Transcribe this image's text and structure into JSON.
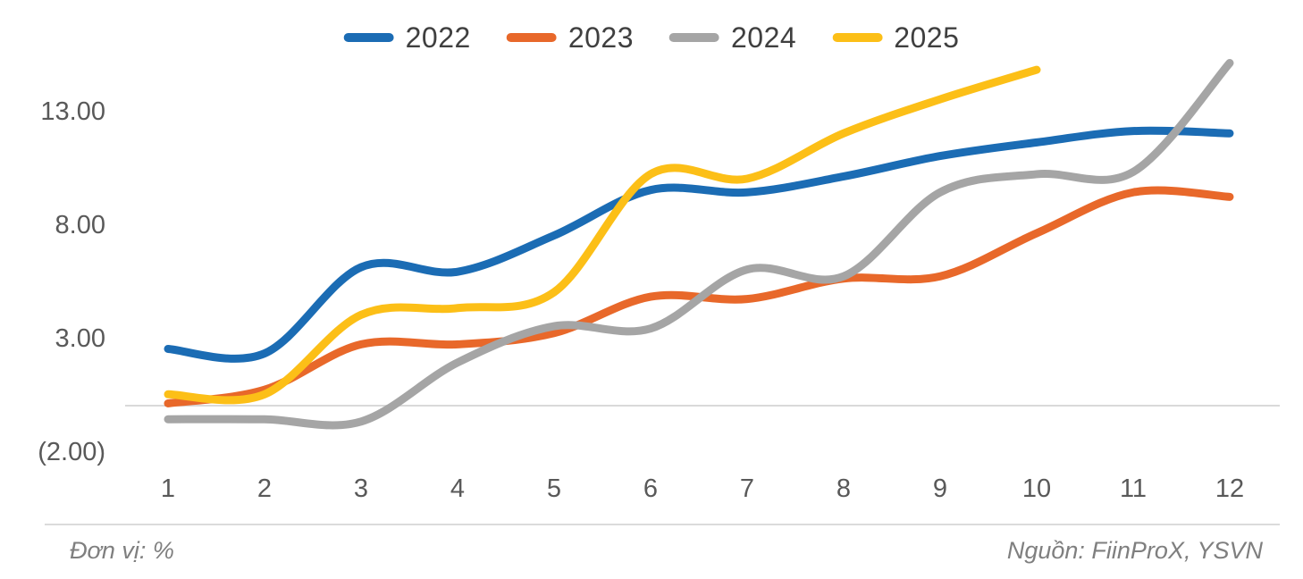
{
  "chart_data": {
    "type": "line",
    "x": [
      1,
      2,
      3,
      4,
      5,
      6,
      7,
      8,
      9,
      10,
      11,
      12
    ],
    "series": [
      {
        "name": "2022",
        "color": "#1b6cb4",
        "values": [
          2.5,
          2.3,
          6.1,
          5.9,
          7.5,
          9.5,
          9.4,
          10.1,
          11.0,
          11.6,
          12.1,
          12.0
        ]
      },
      {
        "name": "2023",
        "color": "#e8682a",
        "values": [
          0.1,
          0.7,
          2.7,
          2.7,
          3.2,
          4.8,
          4.7,
          5.6,
          5.7,
          7.6,
          9.4,
          9.2
        ]
      },
      {
        "name": "2024",
        "color": "#a5a5a5",
        "values": [
          -0.6,
          -0.6,
          -0.7,
          1.9,
          3.5,
          3.4,
          6.0,
          5.7,
          9.4,
          10.2,
          10.3,
          15.1
        ]
      },
      {
        "name": "2025",
        "color": "#fcbf17",
        "values": [
          0.5,
          0.5,
          4.0,
          4.3,
          5.0,
          10.2,
          10.0,
          12.0,
          13.5,
          14.8
        ]
      }
    ],
    "yticks": [
      {
        "value": 13,
        "label": "13.00"
      },
      {
        "value": 8,
        "label": "8.00"
      },
      {
        "value": 3,
        "label": "3.00"
      },
      {
        "value": -2,
        "label": "(2.00)"
      }
    ],
    "ylim": [
      -2.5,
      15.5
    ],
    "grid": "zero-axis-line-only",
    "legend_position": "top-center",
    "title": "",
    "xlabel": "",
    "ylabel": ""
  },
  "footer": {
    "unit": "Đơn vị: %",
    "source": "Nguồn: FiinProX, YSVN"
  }
}
